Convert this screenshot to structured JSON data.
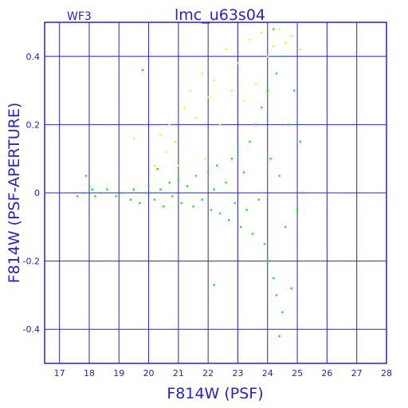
{
  "chart_data": {
    "type": "scatter",
    "title": "lmc_u63s04",
    "subtitle": "WF3",
    "xlabel": "F814W (PSF)",
    "ylabel": "F814W (PSF-APERTURE)",
    "xlim": [
      16.5,
      28.0
    ],
    "ylim": [
      -0.5,
      0.5
    ],
    "x_ticks": [
      17,
      18,
      19,
      20,
      21,
      22,
      23,
      24,
      25,
      26,
      27,
      28
    ],
    "y_ticks": [
      -0.4,
      -0.2,
      0,
      0.2,
      0.4
    ],
    "y_tick_labels": [
      "-0.4",
      "-0.2",
      "0",
      "0.2",
      "0.4"
    ],
    "grid": true,
    "colors": {
      "axis": "#2424c8",
      "grid": "#2424c8",
      "series_green": "#22e622",
      "series_yellow": "#f0f03c"
    },
    "series": [
      {
        "color": "#22e622",
        "points": [
          [
            17.6,
            -0.01
          ],
          [
            17.8,
            0.0
          ],
          [
            17.9,
            0.05
          ],
          [
            18.0,
            0.02
          ],
          [
            18.1,
            0.01
          ],
          [
            18.2,
            -0.01
          ],
          [
            18.4,
            0.0
          ],
          [
            18.6,
            0.01
          ],
          [
            18.9,
            -0.01
          ],
          [
            19.1,
            0.0
          ],
          [
            19.4,
            -0.02
          ],
          [
            19.5,
            0.01
          ],
          [
            19.7,
            -0.03
          ],
          [
            19.8,
            0.36
          ],
          [
            19.9,
            0.0
          ],
          [
            20.0,
            0.02
          ],
          [
            20.2,
            -0.02
          ],
          [
            20.3,
            0.07
          ],
          [
            20.4,
            0.01
          ],
          [
            20.5,
            -0.04
          ],
          [
            20.7,
            0.03
          ],
          [
            20.8,
            -0.01
          ],
          [
            21.0,
            0.04
          ],
          [
            21.1,
            -0.03
          ],
          [
            21.3,
            0.02
          ],
          [
            21.5,
            -0.04
          ],
          [
            21.6,
            0.05
          ],
          [
            21.8,
            -0.02
          ],
          [
            22.0,
            0.06
          ],
          [
            22.1,
            -0.05
          ],
          [
            22.2,
            0.01
          ],
          [
            22.3,
            0.08
          ],
          [
            22.4,
            -0.06
          ],
          [
            22.6,
            0.03
          ],
          [
            22.7,
            -0.08
          ],
          [
            22.8,
            0.1
          ],
          [
            22.9,
            -0.03
          ],
          [
            23.0,
            0.12
          ],
          [
            23.1,
            -0.1
          ],
          [
            23.2,
            0.06
          ],
          [
            23.3,
            -0.05
          ],
          [
            23.4,
            0.15
          ],
          [
            23.5,
            -0.12
          ],
          [
            23.6,
            0.2
          ],
          [
            23.7,
            -0.02
          ],
          [
            23.8,
            0.25
          ],
          [
            23.9,
            -0.15
          ],
          [
            24.0,
            0.3
          ],
          [
            24.0,
            -0.2
          ],
          [
            24.1,
            0.1
          ],
          [
            24.2,
            -0.25
          ],
          [
            24.3,
            0.35
          ],
          [
            24.3,
            -0.3
          ],
          [
            24.4,
            0.05
          ],
          [
            24.5,
            0.4
          ],
          [
            24.5,
            -0.35
          ],
          [
            24.6,
            -0.1
          ],
          [
            24.7,
            0.2
          ],
          [
            24.8,
            -0.28
          ],
          [
            24.9,
            0.3
          ],
          [
            25.0,
            -0.05
          ],
          [
            25.1,
            0.15
          ],
          [
            25.2,
            0.0
          ],
          [
            24.4,
            -0.42
          ],
          [
            22.2,
            -0.27
          ],
          [
            24.2,
            0.48
          ]
        ]
      },
      {
        "color": "#f0f03c",
        "points": [
          [
            19.5,
            0.16
          ],
          [
            20.2,
            0.08
          ],
          [
            20.4,
            0.17
          ],
          [
            20.6,
            0.12
          ],
          [
            20.7,
            0.2
          ],
          [
            20.9,
            0.15
          ],
          [
            21.0,
            0.08
          ],
          [
            21.2,
            0.25
          ],
          [
            21.4,
            0.3
          ],
          [
            21.6,
            0.22
          ],
          [
            21.8,
            0.35
          ],
          [
            21.9,
            0.1
          ],
          [
            22.0,
            0.28
          ],
          [
            22.2,
            0.33
          ],
          [
            22.4,
            0.2
          ],
          [
            22.6,
            0.42
          ],
          [
            22.8,
            0.3
          ],
          [
            23.0,
            0.38
          ],
          [
            23.2,
            0.27
          ],
          [
            23.4,
            0.45
          ],
          [
            23.6,
            0.32
          ],
          [
            23.8,
            0.47
          ],
          [
            24.0,
            0.4
          ],
          [
            24.2,
            0.43
          ],
          [
            24.4,
            0.48
          ],
          [
            24.6,
            0.44
          ],
          [
            24.8,
            0.46
          ],
          [
            25.1,
            0.42
          ]
        ]
      }
    ]
  }
}
